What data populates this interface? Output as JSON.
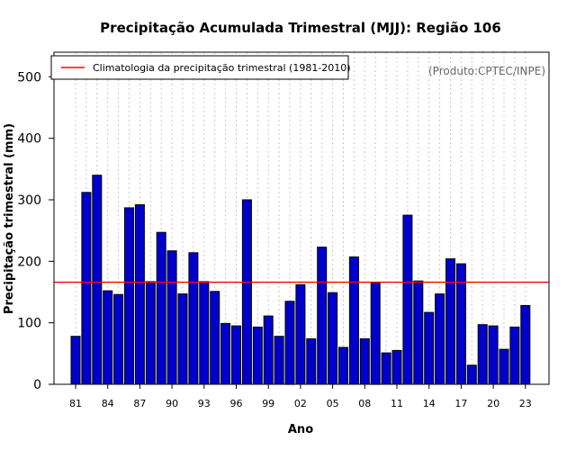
{
  "chart_data": {
    "type": "bar",
    "title": "Precipitação Acumulada Trimestral (MJJ): Região 106",
    "xlabel": "Ano",
    "ylabel": "Precipitação trimestral (mm)",
    "credit": "(Produto:CPTEC/INPE)",
    "ylim": [
      0,
      540
    ],
    "yticks": [
      0,
      100,
      200,
      300,
      400,
      500
    ],
    "xtick_labels": [
      "81",
      "84",
      "87",
      "90",
      "93",
      "96",
      "99",
      "02",
      "05",
      "08",
      "11",
      "14",
      "17",
      "20",
      "23"
    ],
    "categories": [
      "1981",
      "1982",
      "1983",
      "1984",
      "1985",
      "1986",
      "1987",
      "1988",
      "1989",
      "1990",
      "1991",
      "1992",
      "1993",
      "1994",
      "1995",
      "1996",
      "1997",
      "1998",
      "1999",
      "2000",
      "2001",
      "2002",
      "2003",
      "2004",
      "2005",
      "2006",
      "2007",
      "2008",
      "2009",
      "2010",
      "2011",
      "2012",
      "2013",
      "2014",
      "2015",
      "2016",
      "2017",
      "2018",
      "2019",
      "2020",
      "2021",
      "2022",
      "2023"
    ],
    "values": [
      78,
      312,
      340,
      152,
      146,
      287,
      292,
      167,
      247,
      217,
      147,
      214,
      167,
      151,
      99,
      95,
      300,
      93,
      111,
      78,
      135,
      162,
      74,
      223,
      149,
      60,
      207,
      74,
      165,
      51,
      55,
      275,
      168,
      117,
      147,
      204,
      196,
      31,
      97,
      95,
      57,
      93,
      128
    ],
    "bar_color": "#0000cc",
    "climatology": {
      "label": "Climatologia da precipitação trimestral (1981-2010)",
      "value": 166,
      "color": "#ff0000"
    },
    "grid": "vertical-dotted",
    "legend_position": "top-left"
  }
}
